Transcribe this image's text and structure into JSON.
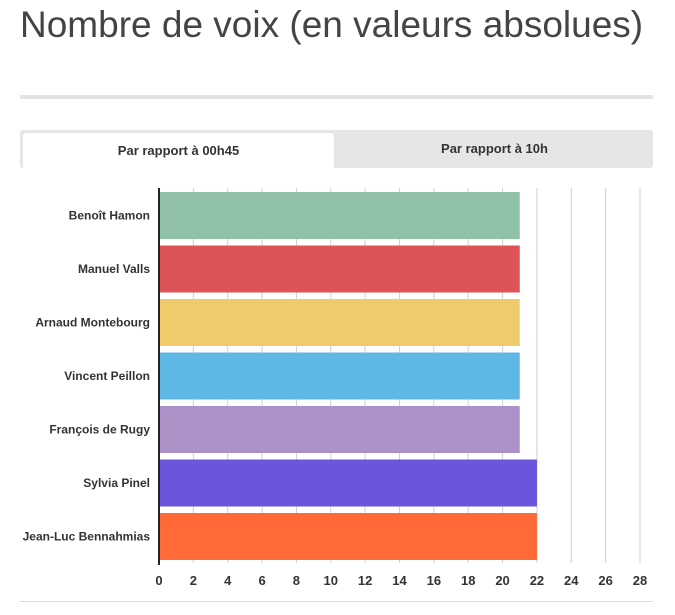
{
  "title": "Nombre de voix (en valeurs absolues)",
  "tabs": [
    {
      "label": "Par rapport à 00h45",
      "active": true
    },
    {
      "label": "Par rapport à 10h",
      "active": false
    }
  ],
  "chart_data": {
    "type": "bar",
    "orientation": "horizontal",
    "categories": [
      "Benoît Hamon",
      "Manuel Valls",
      "Arnaud Montebourg",
      "Vincent Peillon",
      "François de Rugy",
      "Sylvia Pinel",
      "Jean-Luc Bennahmias"
    ],
    "values": [
      21,
      21,
      21,
      21,
      21,
      22,
      22
    ],
    "colors": [
      "#8fc1a6",
      "#de5358",
      "#efcb6c",
      "#5fb7e5",
      "#ab91c7",
      "#6c55db",
      "#ff6a38"
    ],
    "xlim": [
      0,
      28
    ],
    "xticks": [
      0,
      2,
      4,
      6,
      8,
      10,
      12,
      14,
      16,
      18,
      20,
      22,
      24,
      26,
      28
    ],
    "grid": true,
    "title": "",
    "xlabel": "",
    "ylabel": ""
  }
}
